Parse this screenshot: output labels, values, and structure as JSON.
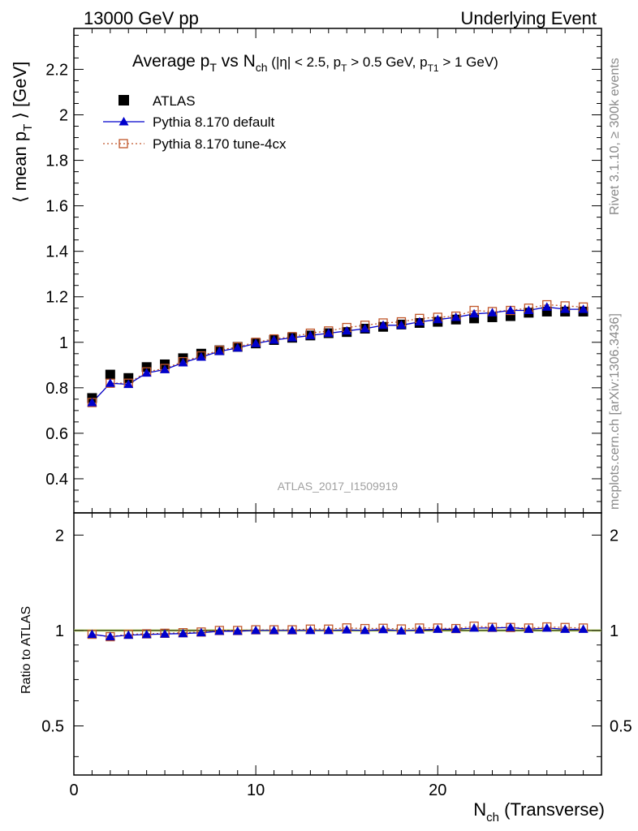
{
  "header": {
    "energy_label": "13000 GeV pp",
    "process_label": "Underlying Event"
  },
  "side": {
    "rivet_label": "Rivet 3.1.10, ≥ 300k events",
    "mcplots_label": "mcplots.cern.ch [arXiv:1306.3436]"
  },
  "colors": {
    "atlas": "#000000",
    "default": "#0000cc",
    "tune": "#c0562a",
    "ratio_band": "#c8e66e"
  },
  "chart_data": [
    {
      "type": "scatter",
      "title": "Average p_T vs N_ch (|η| < 2.5, p_T > 0.5 GeV, p_T1 > 1 GeV)",
      "watermark": "ATLAS_2017_I1509919",
      "ylabel": "⟨ mean p_T ⟩ [GeV]",
      "xlim": [
        0,
        29
      ],
      "ylim": [
        0.25,
        2.38
      ],
      "yticks": [
        "0.4",
        "0.6",
        "0.8",
        "1",
        "1.2",
        "1.4",
        "1.6",
        "1.8",
        "2",
        "2.2"
      ],
      "legend_position": "top-left",
      "x": [
        1,
        2,
        3,
        4,
        5,
        6,
        7,
        8,
        9,
        10,
        11,
        12,
        13,
        14,
        15,
        16,
        17,
        18,
        19,
        20,
        21,
        22,
        23,
        24,
        25,
        26,
        27,
        28
      ],
      "series": [
        {
          "name": "ATLAS",
          "marker": "square",
          "values": [
            0.755,
            0.858,
            0.843,
            0.891,
            0.903,
            0.93,
            0.95,
            0.965,
            0.98,
            0.995,
            1.01,
            1.02,
            1.03,
            1.04,
            1.045,
            1.06,
            1.068,
            1.078,
            1.085,
            1.09,
            1.1,
            1.105,
            1.11,
            1.115,
            1.13,
            1.135,
            1.135,
            1.135
          ]
        },
        {
          "name": "Pythia 8.170 default",
          "marker": "triangle",
          "values": [
            0.735,
            0.82,
            0.815,
            0.865,
            0.88,
            0.91,
            0.935,
            0.96,
            0.975,
            0.995,
            1.01,
            1.02,
            1.03,
            1.04,
            1.05,
            1.06,
            1.075,
            1.075,
            1.09,
            1.1,
            1.11,
            1.125,
            1.13,
            1.14,
            1.14,
            1.155,
            1.145,
            1.145
          ]
        },
        {
          "name": "Pythia 8.170 tune-4cx",
          "marker": "open-square",
          "values": [
            0.735,
            0.82,
            0.82,
            0.87,
            0.885,
            0.915,
            0.94,
            0.965,
            0.98,
            1.0,
            1.015,
            1.025,
            1.04,
            1.05,
            1.065,
            1.075,
            1.085,
            1.09,
            1.105,
            1.11,
            1.115,
            1.14,
            1.135,
            1.14,
            1.15,
            1.165,
            1.16,
            1.155
          ]
        }
      ]
    },
    {
      "type": "scatter",
      "ylabel": "Ratio to ATLAS",
      "xlabel": "N_ch (Transverse)",
      "xlim": [
        0,
        29
      ],
      "ylim": [
        0.35,
        2.35
      ],
      "xticks": [
        "0",
        "10",
        "20"
      ],
      "yticks": [
        "0.5",
        "1",
        "2"
      ],
      "x": [
        1,
        2,
        3,
        4,
        5,
        6,
        7,
        8,
        9,
        10,
        11,
        12,
        13,
        14,
        15,
        16,
        17,
        18,
        19,
        20,
        21,
        22,
        23,
        24,
        25,
        26,
        27,
        28
      ],
      "series": [
        {
          "name": "Pythia 8.170 default",
          "values": [
            0.973,
            0.956,
            0.967,
            0.971,
            0.975,
            0.978,
            0.984,
            0.995,
            0.995,
            1.0,
            1.0,
            1.0,
            1.0,
            1.0,
            1.005,
            1.0,
            1.007,
            0.997,
            1.005,
            1.009,
            1.009,
            1.018,
            1.018,
            1.022,
            1.009,
            1.018,
            1.009,
            1.009
          ]
        },
        {
          "name": "Pythia 8.170 tune-4cx",
          "values": [
            0.973,
            0.956,
            0.973,
            0.976,
            0.98,
            0.984,
            0.989,
            1.0,
            1.0,
            1.005,
            1.005,
            1.005,
            1.01,
            1.01,
            1.019,
            1.014,
            1.016,
            1.011,
            1.018,
            1.018,
            1.014,
            1.032,
            1.023,
            1.022,
            1.018,
            1.026,
            1.022,
            1.018
          ]
        }
      ]
    }
  ]
}
